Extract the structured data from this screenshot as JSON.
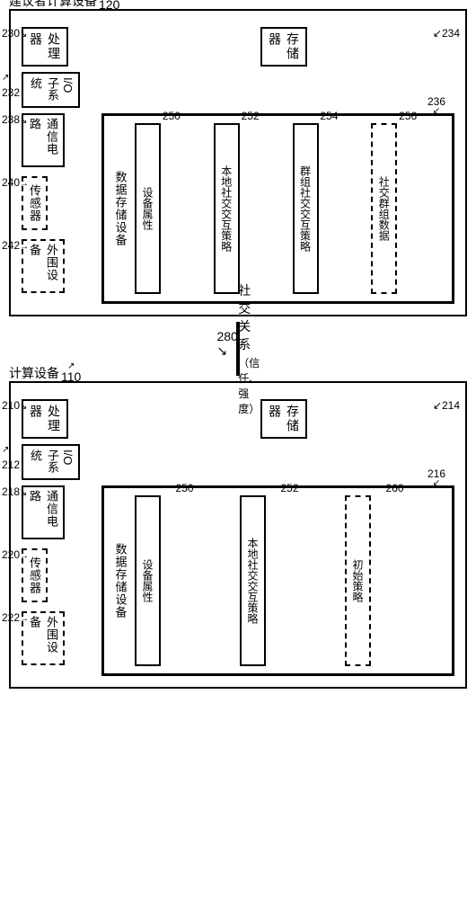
{
  "topDevice": {
    "title": "建议者计算设备",
    "ref": "120",
    "processor": {
      "label": "处理器",
      "ref": "230"
    },
    "memory": {
      "label": "存储器",
      "ref": "234"
    },
    "io": {
      "label": "I/O子系统",
      "ref": "232"
    },
    "comm": {
      "label": "通信电路",
      "ref": "238"
    },
    "sensor": {
      "label": "传感器",
      "ref": "240"
    },
    "periph": {
      "label": "外围设备",
      "ref": "242"
    },
    "storage": {
      "label": "数据存储设备",
      "ref": "236",
      "items": [
        {
          "label": "设备属性",
          "ref": "250",
          "dashed": false
        },
        {
          "label": "本地社交交互策略",
          "ref": "252",
          "dashed": false
        },
        {
          "label": "群组社交交互策略",
          "ref": "254",
          "dashed": false
        },
        {
          "label": "社交群组数据",
          "ref": "256",
          "dashed": true
        }
      ]
    }
  },
  "connector": {
    "ref": "280",
    "label1": "社交关系",
    "label2": "（信任、强度）"
  },
  "bottomDevice": {
    "title": "计算设备",
    "ref": "110",
    "processor": {
      "label": "处理器",
      "ref": "210"
    },
    "memory": {
      "label": "存储器",
      "ref": "214"
    },
    "io": {
      "label": "I/O子系统",
      "ref": "212"
    },
    "comm": {
      "label": "通信电路",
      "ref": "218"
    },
    "sensor": {
      "label": "传感器",
      "ref": "220"
    },
    "periph": {
      "label": "外围设备",
      "ref": "222"
    },
    "storage": {
      "label": "数据存储设备",
      "ref": "216",
      "items": [
        {
          "label": "设备属性",
          "ref": "250",
          "dashed": false
        },
        {
          "label": "本地社交交互策略",
          "ref": "252",
          "dashed": false
        },
        {
          "label": "初始策略",
          "ref": "260",
          "dashed": true
        }
      ]
    }
  }
}
